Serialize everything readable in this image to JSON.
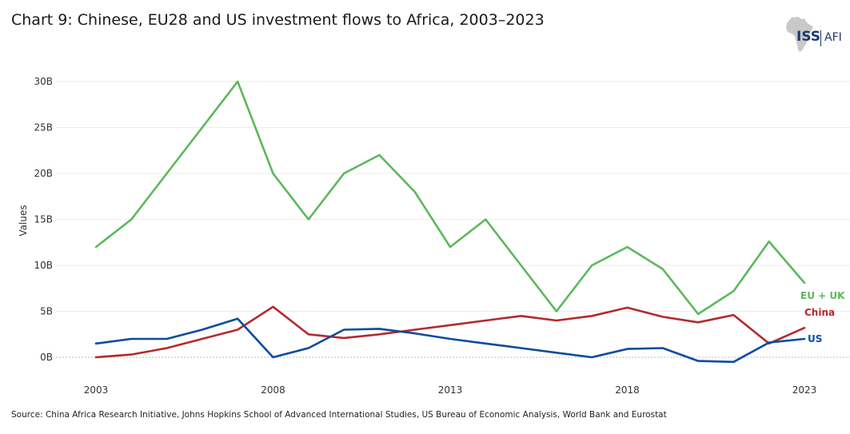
{
  "title": "Chart 9: Chinese, EU28 and US investment flows to Africa, 2003–2023",
  "logo": {
    "primary": "ISS",
    "secondary": "AFI"
  },
  "source": "Source: China Africa Research Initiative, Johns Hopkins School of Advanced International Studies, US Bureau of Economic Analysis, World Bank and Eurostat",
  "chart_data": {
    "type": "line",
    "title": "Chart 9: Chinese, EU28 and US investment flows to Africa, 2003–2023",
    "xlabel": "",
    "ylabel": "Values",
    "x": [
      2003,
      2004,
      2005,
      2006,
      2007,
      2008,
      2009,
      2010,
      2011,
      2012,
      2013,
      2014,
      2015,
      2016,
      2017,
      2018,
      2019,
      2020,
      2021,
      2022,
      2023
    ],
    "xticks": [
      2003,
      2008,
      2013,
      2018,
      2023
    ],
    "xtick_labels": [
      "2003",
      "2008",
      "2013",
      "2018",
      "2023"
    ],
    "yticks": [
      0,
      5,
      10,
      15,
      20,
      25,
      30
    ],
    "ytick_labels": [
      "0B",
      "5B",
      "10B",
      "15B",
      "20B",
      "25B",
      "30B"
    ],
    "xlim": [
      2003,
      2023
    ],
    "ylim": [
      -0.5,
      30
    ],
    "grid": true,
    "legend": "end-of-line labels",
    "series": [
      {
        "name": "EU + UK",
        "color": "#5cb85c",
        "values": [
          12.0,
          15.0,
          20.0,
          25.0,
          30.0,
          20.0,
          15.0,
          20.0,
          22.0,
          18.0,
          12.0,
          15.0,
          10.0,
          5.0,
          10.0,
          12.0,
          9.6,
          4.7,
          7.2,
          12.6,
          8.1
        ]
      },
      {
        "name": "China",
        "color": "#b22a2e",
        "values": [
          0.0,
          0.3,
          1.0,
          2.0,
          3.0,
          5.5,
          2.5,
          2.1,
          2.5,
          3.0,
          3.5,
          4.0,
          4.5,
          4.0,
          4.5,
          5.4,
          4.4,
          3.8,
          4.6,
          1.5,
          3.2
        ]
      },
      {
        "name": "US",
        "color": "#0a4c9c",
        "values": [
          1.5,
          2.0,
          2.0,
          3.0,
          4.2,
          0.0,
          1.0,
          3.0,
          3.1,
          2.6,
          2.0,
          1.5,
          1.0,
          0.5,
          0.0,
          0.9,
          1.0,
          -0.4,
          -0.5,
          1.6,
          2.0
        ]
      }
    ]
  }
}
